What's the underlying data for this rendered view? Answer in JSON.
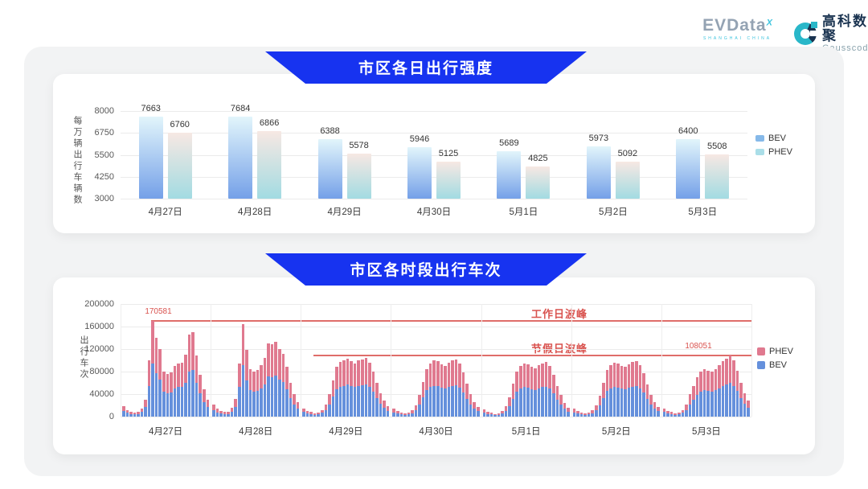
{
  "header": {
    "evdata": {
      "text": "EVData",
      "sup": "X",
      "subtext": "SHANGHAI CHINA"
    },
    "gausscode": {
      "cn": "高科数聚",
      "en": "Gausscode"
    }
  },
  "colors": {
    "banner_blue": "#1733f0",
    "bev_gradient_top": "#e2f5fb",
    "bev_gradient_bottom": "#74a0e8",
    "phev_gradient_top": "#f7e8e3",
    "phev_gradient_bottom": "#a2dbe2",
    "legend_bev_swatch": "#86b9e9",
    "legend_phev_swatch": "#aadee8",
    "bev_bottom": "#6590dc",
    "phev_bottom": "#e0798f",
    "annotation_red": "#d9534f"
  },
  "chart_data": [
    {
      "type": "bar",
      "title": "市区各日出行强度",
      "ylabel": "每万辆出行车辆数",
      "ylim": [
        3000,
        8000
      ],
      "yticks": [
        8000,
        6750,
        5500,
        4250,
        3000
      ],
      "grid": true,
      "legend_position": "right",
      "legend": [
        "BEV",
        "PHEV"
      ],
      "categories": [
        "4月27日",
        "4月28日",
        "4月29日",
        "4月30日",
        "5月1日",
        "5月2日",
        "5月3日"
      ],
      "series": [
        {
          "name": "BEV",
          "values": [
            7663,
            7684,
            6388,
            5946,
            5689,
            5973,
            6400
          ]
        },
        {
          "name": "PHEV",
          "values": [
            6760,
            6866,
            5578,
            5125,
            4825,
            5092,
            5508
          ]
        }
      ]
    },
    {
      "type": "bar",
      "subtype": "stacked-hourly",
      "title": "市区各时段出行车次",
      "ylabel": "出行车次",
      "ylim": [
        0,
        200000
      ],
      "yticks": [
        200000,
        160000,
        120000,
        80000,
        40000,
        0
      ],
      "grid": true,
      "legend_position": "right",
      "legend": [
        "PHEV",
        "BEV"
      ],
      "annotations": {
        "workday_line": {
          "label": "工作日波峰",
          "value": 170581,
          "value_label": "170581"
        },
        "holiday_line": {
          "label": "节假日波峰",
          "value": 108051,
          "value_label": "108051"
        }
      },
      "days": [
        {
          "date": "4月27日",
          "bev": [
            9900,
            6600,
            5000,
            3900,
            4400,
            8300,
            16500,
            55000,
            93800,
            77000,
            66000,
            44000,
            41800,
            43500,
            49500,
            52300,
            52800,
            60500,
            80300,
            82500,
            59400,
            41300,
            26400,
            16500
          ],
          "phev": [
            8100,
            5400,
            4000,
            3100,
            3600,
            6700,
            13500,
            45000,
            76781,
            63000,
            54000,
            36000,
            34200,
            35500,
            40500,
            42700,
            43200,
            49500,
            65700,
            67500,
            48600,
            33700,
            21600,
            13500
          ]
        },
        {
          "date": "4月28日",
          "bev": [
            12100,
            7700,
            5500,
            4400,
            5000,
            8800,
            17600,
            52300,
            90800,
            64900,
            46800,
            44000,
            45700,
            50600,
            57800,
            71500,
            70400,
            73200,
            66000,
            61600,
            48400,
            33000,
            22000,
            14300
          ],
          "phev": [
            9900,
            6300,
            4500,
            3600,
            4000,
            7200,
            14400,
            42700,
            74200,
            53100,
            38200,
            36000,
            37300,
            41400,
            47200,
            58500,
            57600,
            59800,
            54000,
            50400,
            39600,
            27000,
            18000,
            11700
          ]
        },
        {
          "date": "4月29日",
          "bev": [
            8300,
            5500,
            4400,
            3300,
            3900,
            6600,
            12100,
            22000,
            35800,
            48400,
            53400,
            55000,
            56700,
            53900,
            52300,
            55000,
            56100,
            57800,
            52800,
            44000,
            33000,
            23100,
            15400,
            9900
          ],
          "phev": [
            6700,
            4500,
            3600,
            2700,
            3100,
            5400,
            9900,
            18000,
            29200,
            39600,
            43600,
            45000,
            46300,
            44100,
            42700,
            45000,
            45900,
            47200,
            43200,
            36000,
            27000,
            18900,
            12600,
            8100
          ]
        },
        {
          "date": "4月30日",
          "bev": [
            7700,
            5500,
            3900,
            3300,
            3900,
            6100,
            11000,
            20900,
            34100,
            46800,
            52300,
            55000,
            53900,
            51200,
            49500,
            52800,
            55000,
            56100,
            51700,
            42900,
            31900,
            22000,
            14300,
            9400
          ],
          "phev": [
            6300,
            4500,
            3100,
            2700,
            3100,
            4900,
            9000,
            17100,
            27900,
            38200,
            42700,
            45000,
            44100,
            41800,
            40500,
            43200,
            45000,
            45900,
            42300,
            35100,
            26100,
            18000,
            11700,
            7600
          ]
        },
        {
          "date": "5月1日",
          "bev": [
            7200,
            5000,
            3900,
            2800,
            3300,
            5500,
            9900,
            19300,
            31900,
            44000,
            49500,
            52300,
            51200,
            48400,
            47300,
            50600,
            52300,
            53400,
            49500,
            41300,
            30300,
            20900,
            13800,
            8800
          ],
          "phev": [
            5800,
            4000,
            3100,
            2200,
            2700,
            4500,
            8100,
            15700,
            26100,
            36000,
            40500,
            42700,
            41800,
            39600,
            38700,
            41400,
            42700,
            43600,
            40500,
            33700,
            24700,
            17100,
            11200,
            7200
          ]
        },
        {
          "date": "5月2日",
          "bev": [
            7700,
            5500,
            3900,
            3300,
            3900,
            6100,
            11000,
            20400,
            33000,
            45700,
            50600,
            52800,
            51700,
            49500,
            48400,
            51200,
            53400,
            54500,
            50600,
            42400,
            31400,
            21500,
            14300,
            9400
          ],
          "phev": [
            6300,
            4500,
            3100,
            2700,
            3100,
            4900,
            9000,
            16600,
            27000,
            37300,
            41400,
            43200,
            42300,
            40500,
            39600,
            41800,
            43600,
            44500,
            41400,
            34600,
            25600,
            17500,
            11700,
            7600
          ]
        },
        {
          "date": "5月3日",
          "bev": [
            8300,
            5500,
            4400,
            3300,
            3900,
            6600,
            12100,
            22000,
            30300,
            38500,
            44000,
            46800,
            45100,
            44000,
            46800,
            50600,
            53900,
            56700,
            59400,
            55000,
            45100,
            33000,
            23100,
            15400
          ],
          "phev": [
            6700,
            4500,
            3600,
            2700,
            3100,
            5400,
            9900,
            18000,
            24700,
            31500,
            36000,
            38200,
            36900,
            36000,
            38200,
            41400,
            44100,
            46300,
            48651,
            45000,
            36900,
            27000,
            18900,
            12600
          ]
        }
      ]
    }
  ]
}
